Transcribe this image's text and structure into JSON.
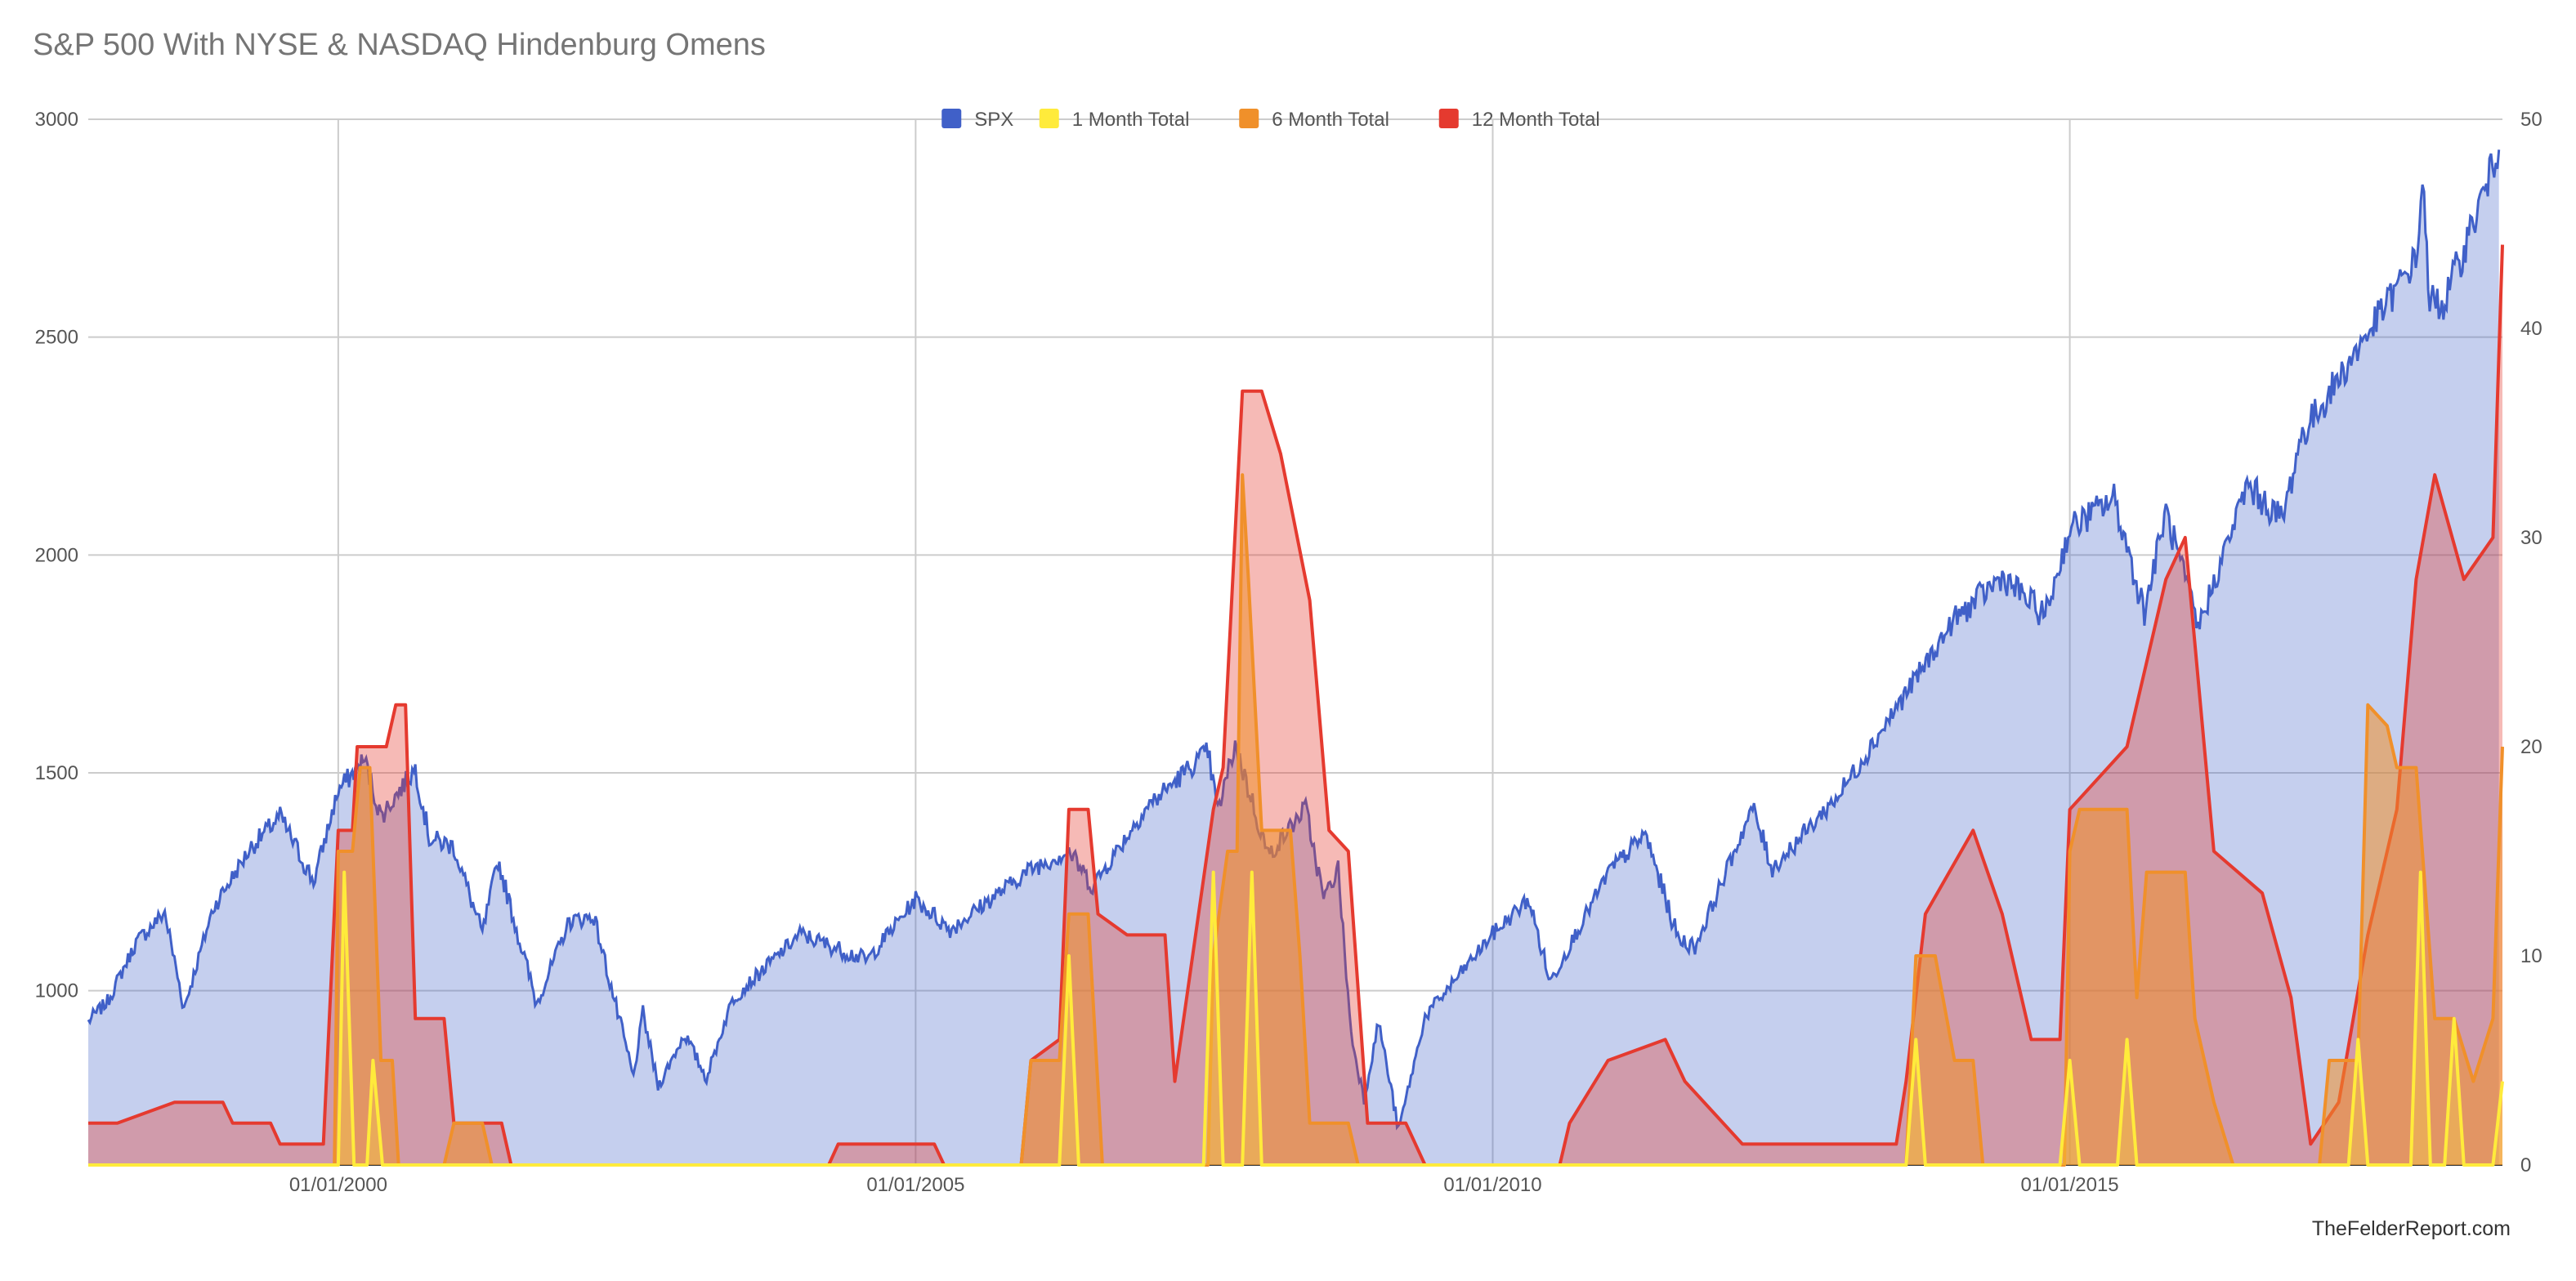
{
  "title": "S&P 500 With NYSE & NASDAQ Hindenburg Omens",
  "credit": "TheFelderReport.com",
  "chart_data": {
    "type": "line",
    "title": "S&P 500 With NYSE & NASDAQ Hindenburg Omens",
    "xlabel": "",
    "ylabel": "",
    "x_ticks": [
      "01/01/2000",
      "01/01/2005",
      "01/01/2010",
      "01/01/2015"
    ],
    "x_tick_dates": [
      "2000-01-01",
      "2005-01-01",
      "2010-01-01",
      "2015-01-01"
    ],
    "xlim": [
      "1997-11-01",
      "2018-10-01"
    ],
    "y_left": {
      "ylim": [
        600,
        3000
      ],
      "ticks": [
        "1000",
        "1500",
        "2000",
        "2500",
        "3000"
      ]
    },
    "y_right": {
      "ylim": [
        0,
        50
      ],
      "ticks": [
        "0",
        "10",
        "20",
        "30",
        "40",
        "50"
      ]
    },
    "grid": true,
    "legend_position": "top-center",
    "colors": {
      "SPX": "#4060c8",
      "1 Month Total": "#ffeb3b",
      "6 Month Total": "#f0902a",
      "12 Month Total": "#e53a2f"
    },
    "series": [
      {
        "name": "SPX",
        "axis": "left",
        "points": [
          [
            "1997-11-01",
            930
          ],
          [
            "1998-01-01",
            975
          ],
          [
            "1998-04-01",
            1110
          ],
          [
            "1998-07-01",
            1180
          ],
          [
            "1998-08-31",
            960
          ],
          [
            "1998-12-01",
            1190
          ],
          [
            "1999-04-01",
            1330
          ],
          [
            "1999-07-01",
            1400
          ],
          [
            "1999-10-15",
            1250
          ],
          [
            "2000-01-01",
            1460
          ],
          [
            "2000-03-24",
            1530
          ],
          [
            "2000-05-15",
            1400
          ],
          [
            "2000-09-01",
            1510
          ],
          [
            "2000-10-15",
            1350
          ],
          [
            "2001-01-01",
            1330
          ],
          [
            "2001-04-01",
            1130
          ],
          [
            "2001-05-20",
            1300
          ],
          [
            "2001-09-20",
            970
          ],
          [
            "2002-01-01",
            1160
          ],
          [
            "2002-03-20",
            1170
          ],
          [
            "2002-07-23",
            800
          ],
          [
            "2002-08-22",
            950
          ],
          [
            "2002-10-09",
            780
          ],
          [
            "2003-01-01",
            900
          ],
          [
            "2003-03-11",
            800
          ],
          [
            "2003-06-01",
            980
          ],
          [
            "2004-01-01",
            1130
          ],
          [
            "2004-08-01",
            1070
          ],
          [
            "2005-01-01",
            1210
          ],
          [
            "2005-04-20",
            1140
          ],
          [
            "2006-01-01",
            1280
          ],
          [
            "2006-05-01",
            1320
          ],
          [
            "2006-07-15",
            1240
          ],
          [
            "2007-01-01",
            1420
          ],
          [
            "2007-07-15",
            1550
          ],
          [
            "2007-08-15",
            1410
          ],
          [
            "2007-10-09",
            1565
          ],
          [
            "2008-01-22",
            1310
          ],
          [
            "2008-05-19",
            1420
          ],
          [
            "2008-07-15",
            1210
          ],
          [
            "2008-08-30",
            1280
          ],
          [
            "2008-10-10",
            900
          ],
          [
            "2008-11-20",
            750
          ],
          [
            "2009-01-05",
            930
          ],
          [
            "2009-03-09",
            680
          ],
          [
            "2009-06-01",
            940
          ],
          [
            "2010-01-01",
            1130
          ],
          [
            "2010-04-25",
            1210
          ],
          [
            "2010-07-02",
            1020
          ],
          [
            "2011-01-01",
            1270
          ],
          [
            "2011-04-29",
            1360
          ],
          [
            "2011-08-10",
            1120
          ],
          [
            "2011-10-03",
            1100
          ],
          [
            "2012-04-02",
            1420
          ],
          [
            "2012-06-04",
            1280
          ],
          [
            "2013-01-01",
            1450
          ],
          [
            "2013-12-31",
            1850
          ],
          [
            "2014-06-01",
            1950
          ],
          [
            "2014-10-15",
            1860
          ],
          [
            "2015-01-01",
            2060
          ],
          [
            "2015-05-21",
            2130
          ],
          [
            "2015-08-25",
            1870
          ],
          [
            "2015-11-01",
            2100
          ],
          [
            "2016-02-11",
            1830
          ],
          [
            "2016-07-15",
            2160
          ],
          [
            "2016-11-04",
            2080
          ],
          [
            "2017-01-01",
            2270
          ],
          [
            "2017-12-31",
            2680
          ],
          [
            "2018-01-26",
            2870
          ],
          [
            "2018-02-08",
            2580
          ],
          [
            "2018-04-02",
            2580
          ],
          [
            "2018-09-20",
            2930
          ]
        ]
      },
      {
        "name": "1 Month Total",
        "axis": "right",
        "points": [
          [
            "1997-11-01",
            0
          ],
          [
            "2000-01-01",
            0
          ],
          [
            "2000-01-20",
            14
          ],
          [
            "2000-02-20",
            0
          ],
          [
            "2000-04-01",
            0
          ],
          [
            "2000-04-20",
            5
          ],
          [
            "2000-05-20",
            0
          ],
          [
            "2006-04-01",
            0
          ],
          [
            "2006-05-01",
            10
          ],
          [
            "2006-06-01",
            0
          ],
          [
            "2007-07-01",
            0
          ],
          [
            "2007-08-01",
            14
          ],
          [
            "2007-09-01",
            0
          ],
          [
            "2007-11-01",
            0
          ],
          [
            "2007-12-01",
            14
          ],
          [
            "2008-01-01",
            0
          ],
          [
            "2013-08-01",
            0
          ],
          [
            "2013-09-01",
            6
          ],
          [
            "2013-10-01",
            0
          ],
          [
            "2014-12-01",
            0
          ],
          [
            "2015-01-01",
            5
          ],
          [
            "2015-02-01",
            0
          ],
          [
            "2015-06-01",
            0
          ],
          [
            "2015-07-01",
            6
          ],
          [
            "2015-08-01",
            0
          ],
          [
            "2017-06-01",
            0
          ],
          [
            "2017-07-01",
            6
          ],
          [
            "2017-08-01",
            0
          ],
          [
            "2017-12-15",
            0
          ],
          [
            "2018-01-15",
            14
          ],
          [
            "2018-02-15",
            0
          ],
          [
            "2018-04-01",
            0
          ],
          [
            "2018-05-01",
            7
          ],
          [
            "2018-06-01",
            0
          ],
          [
            "2018-09-01",
            0
          ],
          [
            "2018-10-01",
            4
          ]
        ]
      },
      {
        "name": "6 Month Total",
        "axis": "right",
        "points": [
          [
            "1997-11-01",
            0
          ],
          [
            "1999-12-20",
            0
          ],
          [
            "2000-01-01",
            15
          ],
          [
            "2000-02-15",
            15
          ],
          [
            "2000-03-10",
            19
          ],
          [
            "2000-04-10",
            19
          ],
          [
            "2000-05-15",
            5
          ],
          [
            "2000-06-20",
            5
          ],
          [
            "2000-07-10",
            0
          ],
          [
            "2000-12-01",
            0
          ],
          [
            "2001-01-01",
            2
          ],
          [
            "2001-04-01",
            2
          ],
          [
            "2001-05-01",
            0
          ],
          [
            "2005-12-01",
            0
          ],
          [
            "2006-01-01",
            5
          ],
          [
            "2006-04-01",
            5
          ],
          [
            "2006-05-01",
            12
          ],
          [
            "2006-07-01",
            12
          ],
          [
            "2006-08-15",
            0
          ],
          [
            "2007-07-15",
            0
          ],
          [
            "2007-08-01",
            10
          ],
          [
            "2007-09-15",
            15
          ],
          [
            "2007-10-15",
            15
          ],
          [
            "2007-11-01",
            33
          ],
          [
            "2007-11-20",
            28
          ],
          [
            "2008-01-01",
            16
          ],
          [
            "2008-04-01",
            16
          ],
          [
            "2008-05-01",
            10
          ],
          [
            "2008-06-01",
            2
          ],
          [
            "2008-10-01",
            2
          ],
          [
            "2008-11-01",
            0
          ],
          [
            "2013-08-01",
            0
          ],
          [
            "2013-09-01",
            10
          ],
          [
            "2013-11-01",
            10
          ],
          [
            "2014-01-01",
            5
          ],
          [
            "2014-03-01",
            5
          ],
          [
            "2014-04-01",
            0
          ],
          [
            "2014-12-15",
            0
          ],
          [
            "2015-01-01",
            15
          ],
          [
            "2015-02-01",
            17
          ],
          [
            "2015-07-01",
            17
          ],
          [
            "2015-08-01",
            8
          ],
          [
            "2015-09-01",
            14
          ],
          [
            "2016-01-01",
            14
          ],
          [
            "2016-02-01",
            7
          ],
          [
            "2016-04-01",
            3
          ],
          [
            "2016-06-01",
            0
          ],
          [
            "2017-03-01",
            0
          ],
          [
            "2017-04-01",
            5
          ],
          [
            "2017-07-01",
            5
          ],
          [
            "2017-08-01",
            22
          ],
          [
            "2017-10-01",
            21
          ],
          [
            "2017-11-01",
            19
          ],
          [
            "2018-01-01",
            19
          ],
          [
            "2018-03-01",
            7
          ],
          [
            "2018-05-01",
            7
          ],
          [
            "2018-07-01",
            4
          ],
          [
            "2018-09-01",
            7
          ],
          [
            "2018-10-01",
            20
          ]
        ]
      },
      {
        "name": "12 Month Total",
        "axis": "right",
        "points": [
          [
            "1997-11-01",
            2
          ],
          [
            "1998-01-01",
            2
          ],
          [
            "1998-02-01",
            2
          ],
          [
            "1998-08-01",
            3
          ],
          [
            "1999-01-01",
            3
          ],
          [
            "1999-02-01",
            2
          ],
          [
            "1999-06-01",
            2
          ],
          [
            "1999-07-01",
            1
          ],
          [
            "1999-11-15",
            1
          ],
          [
            "2000-01-01",
            16
          ],
          [
            "2000-02-15",
            16
          ],
          [
            "2000-03-01",
            20
          ],
          [
            "2000-06-01",
            20
          ],
          [
            "2000-07-01",
            22
          ],
          [
            "2000-08-01",
            22
          ],
          [
            "2000-09-01",
            7
          ],
          [
            "2000-12-01",
            7
          ],
          [
            "2001-01-01",
            2
          ],
          [
            "2001-06-01",
            2
          ],
          [
            "2001-07-01",
            0
          ],
          [
            "2004-04-01",
            0
          ],
          [
            "2004-05-01",
            1
          ],
          [
            "2005-03-01",
            1
          ],
          [
            "2005-04-01",
            0
          ],
          [
            "2005-12-01",
            0
          ],
          [
            "2006-01-01",
            5
          ],
          [
            "2006-04-01",
            6
          ],
          [
            "2006-05-01",
            17
          ],
          [
            "2006-07-01",
            17
          ],
          [
            "2006-08-01",
            12
          ],
          [
            "2006-11-01",
            11
          ],
          [
            "2007-03-01",
            11
          ],
          [
            "2007-04-01",
            4
          ],
          [
            "2007-08-01",
            17
          ],
          [
            "2007-09-01",
            19
          ],
          [
            "2007-11-01",
            37
          ],
          [
            "2008-01-01",
            37
          ],
          [
            "2008-03-01",
            34
          ],
          [
            "2008-06-01",
            27
          ],
          [
            "2008-08-01",
            16
          ],
          [
            "2008-10-01",
            15
          ],
          [
            "2008-12-01",
            2
          ],
          [
            "2009-04-01",
            2
          ],
          [
            "2009-06-01",
            0
          ],
          [
            "2010-08-01",
            0
          ],
          [
            "2010-09-01",
            2
          ],
          [
            "2011-01-01",
            5
          ],
          [
            "2011-07-01",
            6
          ],
          [
            "2011-09-01",
            4
          ],
          [
            "2012-03-01",
            1
          ],
          [
            "2013-07-01",
            1
          ],
          [
            "2013-08-01",
            4
          ],
          [
            "2013-10-01",
            12
          ],
          [
            "2014-03-01",
            16
          ],
          [
            "2014-06-01",
            12
          ],
          [
            "2014-09-01",
            6
          ],
          [
            "2014-12-01",
            6
          ],
          [
            "2015-01-01",
            17
          ],
          [
            "2015-07-01",
            20
          ],
          [
            "2015-11-01",
            28
          ],
          [
            "2016-01-01",
            30
          ],
          [
            "2016-04-01",
            15
          ],
          [
            "2016-09-01",
            13
          ],
          [
            "2016-12-01",
            8
          ],
          [
            "2017-02-01",
            1
          ],
          [
            "2017-05-01",
            3
          ],
          [
            "2017-08-01",
            11
          ],
          [
            "2017-11-01",
            17
          ],
          [
            "2018-01-01",
            28
          ],
          [
            "2018-03-01",
            33
          ],
          [
            "2018-06-01",
            28
          ],
          [
            "2018-09-01",
            30
          ],
          [
            "2018-10-01",
            44
          ]
        ]
      }
    ]
  }
}
